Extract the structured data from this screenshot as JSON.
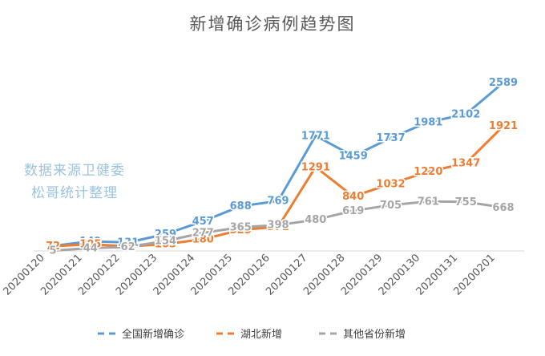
{
  "chart_data": {
    "type": "line",
    "title": "新增确诊病例趋势图",
    "xlabel": "",
    "ylabel": "",
    "categories": [
      "20200120",
      "20200121",
      "20200122",
      "20200123",
      "20200124",
      "20200125",
      "20200126",
      "20200127",
      "20200128",
      "20200129",
      "20200130",
      "20200131",
      "20200201"
    ],
    "ylim": [
      0,
      2700
    ],
    "grid": false,
    "legend_position": "bottom",
    "series": [
      {
        "name": "全国新增确诊",
        "color": "#5b9bd5",
        "values": [
          77,
          149,
          131,
          259,
          457,
          688,
          769,
          1771,
          1459,
          1737,
          1981,
          2102,
          2589
        ]
      },
      {
        "name": "湖北新增",
        "color": "#ed7d31",
        "values": [
          72,
          105,
          69,
          105,
          180,
          323,
          371,
          1291,
          840,
          1032,
          1220,
          1347,
          1921
        ]
      },
      {
        "name": "其他省份新增",
        "color": "#a5a5a5",
        "values": [
          5,
          44,
          62,
          154,
          277,
          365,
          398,
          480,
          619,
          705,
          761,
          755,
          668
        ]
      }
    ]
  },
  "watermark": {
    "line1": "数据来源卫健委",
    "line2": "松哥统计整理"
  }
}
